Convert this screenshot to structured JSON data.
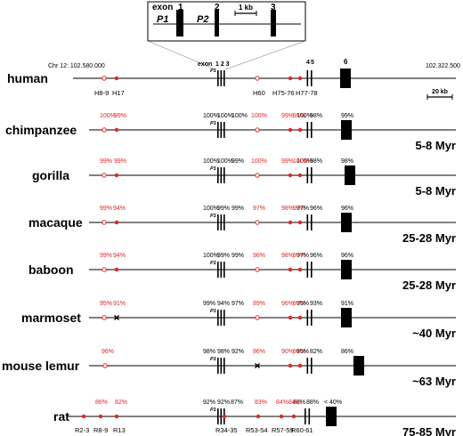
{
  "inset": {
    "exon_title": "exon",
    "exon_numbers": [
      "1",
      "2",
      "3"
    ],
    "promoters": [
      "P1",
      "P2"
    ],
    "scale": "1 kb"
  },
  "coords": {
    "left": "Chr 12: 102.580.000",
    "right": "102.322.500"
  },
  "scale_bar": "20 kb",
  "human": {
    "name": "human",
    "exon_label": "exon",
    "exons_123": "1 2 3",
    "exon4": "4",
    "exon5": "5",
    "exon6": "6",
    "p1": "P1",
    "markers": [
      "H8-9",
      "H17",
      "H60",
      "H75-76",
      "H77-78"
    ]
  },
  "species": [
    {
      "name": "chimpanzee",
      "time": "5-8 Myr",
      "red": [
        "100%",
        "99%",
        "100%",
        "99%",
        "99%"
      ],
      "black": [
        "100%",
        "100%",
        "100%",
        "100%",
        "98%",
        "99%"
      ],
      "p1": "P1"
    },
    {
      "name": "gorilla",
      "time": "5-8 Myr",
      "red": [
        "99%",
        "99%",
        "100%",
        "99%",
        "100%"
      ],
      "black": [
        "100%",
        "100%",
        "99%",
        "100%",
        "98%",
        "98%"
      ],
      "p1": "P1"
    },
    {
      "name": "macaque",
      "time": "25-28 Myr",
      "red": [
        "99%",
        "94%",
        "97%",
        "98%",
        "97%"
      ],
      "black": [
        "100%",
        "99%",
        "99%",
        "97%",
        "96%",
        "96%"
      ],
      "p1": "P1"
    },
    {
      "name": "baboon",
      "time": "25-28 Myr",
      "red": [
        "99%",
        "94%",
        "98%",
        "98%",
        "97%"
      ],
      "black": [
        "100%",
        "99%",
        "99%",
        "97%",
        "96%",
        "96%"
      ],
      "p1": "P1"
    },
    {
      "name": "marmoset",
      "time": "~40 Myr",
      "red": [
        "95%",
        "91%",
        "89%",
        "96%",
        "97%"
      ],
      "black": [
        "99%",
        "94%",
        "97%",
        "95%",
        "93%",
        "91%"
      ],
      "p1": "P1"
    },
    {
      "name": "mouse lemur",
      "time": "~63 Myr",
      "red": [
        "96%",
        "86%",
        "90%",
        "94%"
      ],
      "black": [
        "98%",
        "98%",
        "92%",
        "95%",
        "82%",
        "86%"
      ],
      "p1": "P1"
    },
    {
      "name": "rat",
      "time": "75-85 Myr",
      "red": [
        "86%",
        "82%",
        "83%",
        "84%",
        "84%"
      ],
      "black": [
        "92%",
        "92%",
        "87%",
        "88%",
        "88%",
        "< 40%"
      ],
      "p1": "P1",
      "markers": [
        "R2-3",
        "R8-9",
        "R13",
        "R34-35",
        "R53-54",
        "R57-59",
        "R60-61"
      ]
    }
  ]
}
